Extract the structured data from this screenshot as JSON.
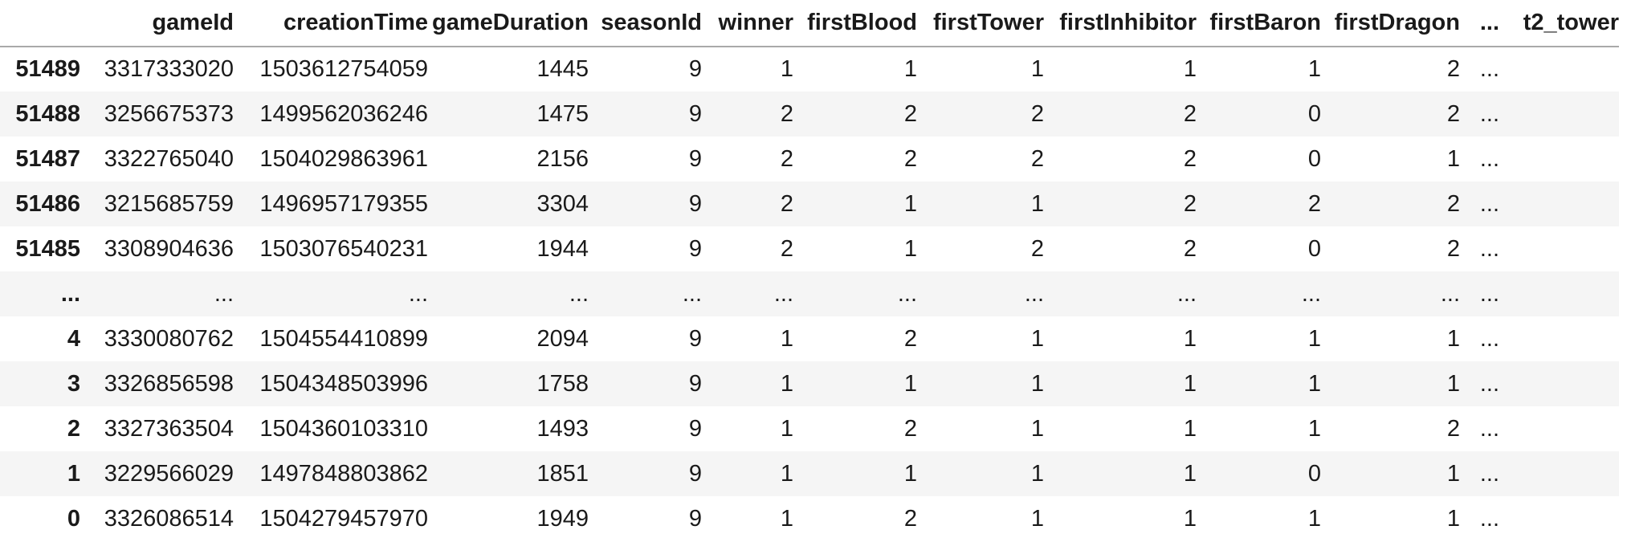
{
  "table": {
    "index_header": "",
    "columns": [
      "gameId",
      "creationTime",
      "gameDuration",
      "seasonId",
      "winner",
      "firstBlood",
      "firstTower",
      "firstInhibitor",
      "firstBaron",
      "firstDragon",
      "...",
      "t2_tower"
    ],
    "rows": [
      {
        "index": "51489",
        "cells": [
          "3317333020",
          "1503612754059",
          "1445",
          "9",
          "1",
          "1",
          "1",
          "1",
          "1",
          "2",
          "...",
          ""
        ]
      },
      {
        "index": "51488",
        "cells": [
          "3256675373",
          "1499562036246",
          "1475",
          "9",
          "2",
          "2",
          "2",
          "2",
          "0",
          "2",
          "...",
          ""
        ]
      },
      {
        "index": "51487",
        "cells": [
          "3322765040",
          "1504029863961",
          "2156",
          "9",
          "2",
          "2",
          "2",
          "2",
          "0",
          "1",
          "...",
          ""
        ]
      },
      {
        "index": "51486",
        "cells": [
          "3215685759",
          "1496957179355",
          "3304",
          "9",
          "2",
          "1",
          "1",
          "2",
          "2",
          "2",
          "...",
          ""
        ]
      },
      {
        "index": "51485",
        "cells": [
          "3308904636",
          "1503076540231",
          "1944",
          "9",
          "2",
          "1",
          "2",
          "2",
          "0",
          "2",
          "...",
          ""
        ]
      },
      {
        "index": "...",
        "cells": [
          "...",
          "...",
          "...",
          "...",
          "...",
          "...",
          "...",
          "...",
          "...",
          "...",
          "...",
          ""
        ]
      },
      {
        "index": "4",
        "cells": [
          "3330080762",
          "1504554410899",
          "2094",
          "9",
          "1",
          "2",
          "1",
          "1",
          "1",
          "1",
          "...",
          ""
        ]
      },
      {
        "index": "3",
        "cells": [
          "3326856598",
          "1504348503996",
          "1758",
          "9",
          "1",
          "1",
          "1",
          "1",
          "1",
          "1",
          "...",
          ""
        ]
      },
      {
        "index": "2",
        "cells": [
          "3327363504",
          "1504360103310",
          "1493",
          "9",
          "1",
          "2",
          "1",
          "1",
          "1",
          "2",
          "...",
          ""
        ]
      },
      {
        "index": "1",
        "cells": [
          "3229566029",
          "1497848803862",
          "1851",
          "9",
          "1",
          "1",
          "1",
          "1",
          "0",
          "1",
          "...",
          ""
        ]
      },
      {
        "index": "0",
        "cells": [
          "3326086514",
          "1504279457970",
          "1949",
          "9",
          "1",
          "2",
          "1",
          "1",
          "1",
          "1",
          "...",
          ""
        ]
      }
    ]
  },
  "colors": {
    "background": "#ffffff",
    "row_stripe": "#f5f5f5",
    "header_divider": "#a9a9a9",
    "text": "#1a1a1a"
  }
}
